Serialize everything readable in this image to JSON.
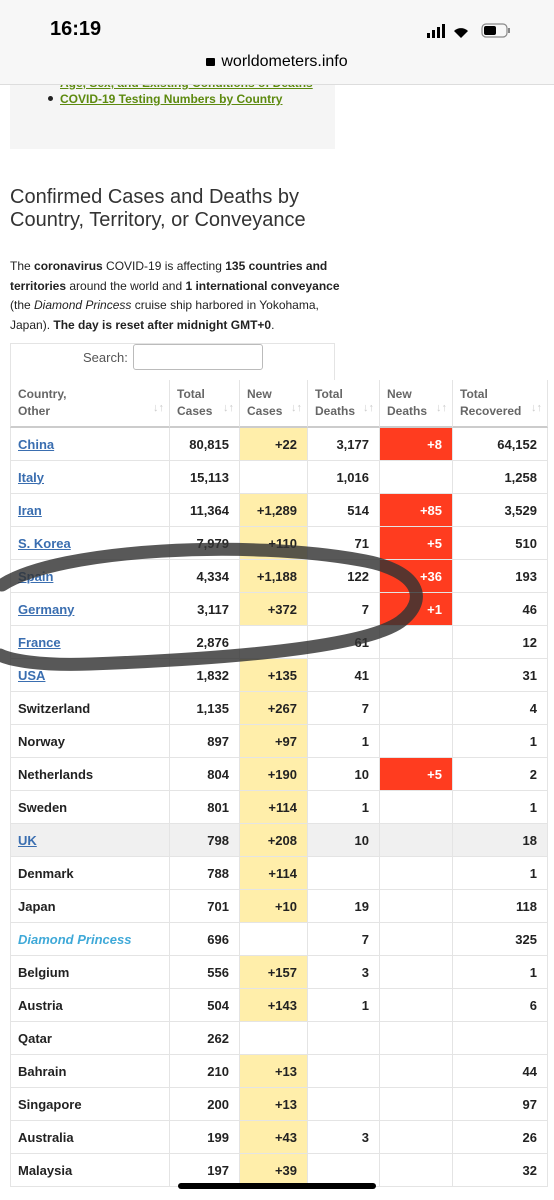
{
  "status_bar": {
    "time": "16:19"
  },
  "address_bar": {
    "url": "worldometers.info"
  },
  "menu": {
    "links": [
      "Age, Sex, and Existing Conditions of Deaths",
      "COVID-19 Testing Numbers by Country"
    ]
  },
  "heading": [
    "Confirmed Cases and Deaths by",
    "Country, Territory, or Conveyance"
  ],
  "intro": [
    {
      "text": "The ",
      "bold": false,
      "italic": false
    },
    {
      "text": "coronavirus",
      "bold": true,
      "italic": false
    },
    {
      "text": " COVID-19 is affecting ",
      "bold": false,
      "italic": false
    },
    {
      "text": "135 countries and territories",
      "bold": true,
      "italic": false
    },
    {
      "text": " around the world and ",
      "bold": false,
      "italic": false
    },
    {
      "text": "1 international conveyance",
      "bold": true,
      "italic": false
    },
    {
      "text": " (the ",
      "bold": false,
      "italic": false
    },
    {
      "text": "Diamond Princess",
      "bold": false,
      "italic": true
    },
    {
      "text": " cruise ship harbored in Yokohama, Japan). ",
      "bold": false,
      "italic": false
    },
    {
      "text": "The day is reset after midnight GMT+0",
      "bold": true,
      "italic": false
    },
    {
      "text": ".",
      "bold": false,
      "italic": false
    }
  ],
  "search": {
    "label": "Search:"
  },
  "table": {
    "headers": [
      [
        "Country,",
        "Other"
      ],
      [
        "Total",
        "Cases"
      ],
      [
        "New",
        "Cases"
      ],
      [
        "Total",
        "Deaths"
      ],
      [
        "New",
        "Deaths"
      ],
      [
        "Total",
        "Recovered"
      ]
    ],
    "rows": [
      {
        "cells": [
          "China",
          "80,815",
          "+22",
          "3,177",
          "+8",
          "64,152"
        ],
        "link": true
      },
      {
        "cells": [
          "Italy",
          "15,113",
          null,
          "1,016",
          null,
          "1,258"
        ],
        "link": true
      },
      {
        "cells": [
          "Iran",
          "11,364",
          "+1,289",
          "514",
          "+85",
          "3,529"
        ],
        "link": true
      },
      {
        "cells": [
          "S. Korea",
          "7,979",
          "+110",
          "71",
          "+5",
          "510"
        ],
        "link": true
      },
      {
        "cells": [
          "Spain",
          "4,334",
          "+1,188",
          "122",
          "+36",
          "193"
        ],
        "link": true
      },
      {
        "cells": [
          "Germany",
          "3,117",
          "+372",
          "7",
          "+1",
          "46"
        ],
        "link": true
      },
      {
        "cells": [
          "France",
          "2,876",
          null,
          "61",
          null,
          "12"
        ],
        "link": true
      },
      {
        "cells": [
          "USA",
          "1,832",
          "+135",
          "41",
          null,
          "31"
        ],
        "link": true
      },
      {
        "cells": [
          "Switzerland",
          "1,135",
          "+267",
          "7",
          null,
          "4"
        ]
      },
      {
        "cells": [
          "Norway",
          "897",
          "+97",
          "1",
          null,
          "1"
        ]
      },
      {
        "cells": [
          "Netherlands",
          "804",
          "+190",
          "10",
          "+5",
          "2"
        ]
      },
      {
        "cells": [
          "Sweden",
          "801",
          "+114",
          "1",
          null,
          "1"
        ]
      },
      {
        "cells": [
          "UK",
          "798",
          "+208",
          "10",
          null,
          "18"
        ],
        "link": true,
        "shaded": true
      },
      {
        "cells": [
          "Denmark",
          "788",
          "+114",
          null,
          null,
          "1"
        ]
      },
      {
        "cells": [
          "Japan",
          "701",
          "+10",
          "19",
          null,
          "118"
        ]
      },
      {
        "cells": [
          "Diamond Princess",
          "696",
          null,
          "7",
          null,
          "325"
        ],
        "italic": true
      },
      {
        "cells": [
          "Belgium",
          "556",
          "+157",
          "3",
          null,
          "1"
        ]
      },
      {
        "cells": [
          "Austria",
          "504",
          "+143",
          "1",
          null,
          "6"
        ]
      },
      {
        "cells": [
          "Qatar",
          "262",
          null,
          null,
          null,
          null
        ]
      },
      {
        "cells": [
          "Bahrain",
          "210",
          "+13",
          null,
          null,
          "44"
        ]
      },
      {
        "cells": [
          "Singapore",
          "200",
          "+13",
          null,
          null,
          "97"
        ]
      },
      {
        "cells": [
          "Australia",
          "199",
          "+43",
          "3",
          null,
          "26"
        ]
      },
      {
        "cells": [
          "Malaysia",
          "197",
          "+39",
          null,
          null,
          "32"
        ]
      }
    ]
  }
}
